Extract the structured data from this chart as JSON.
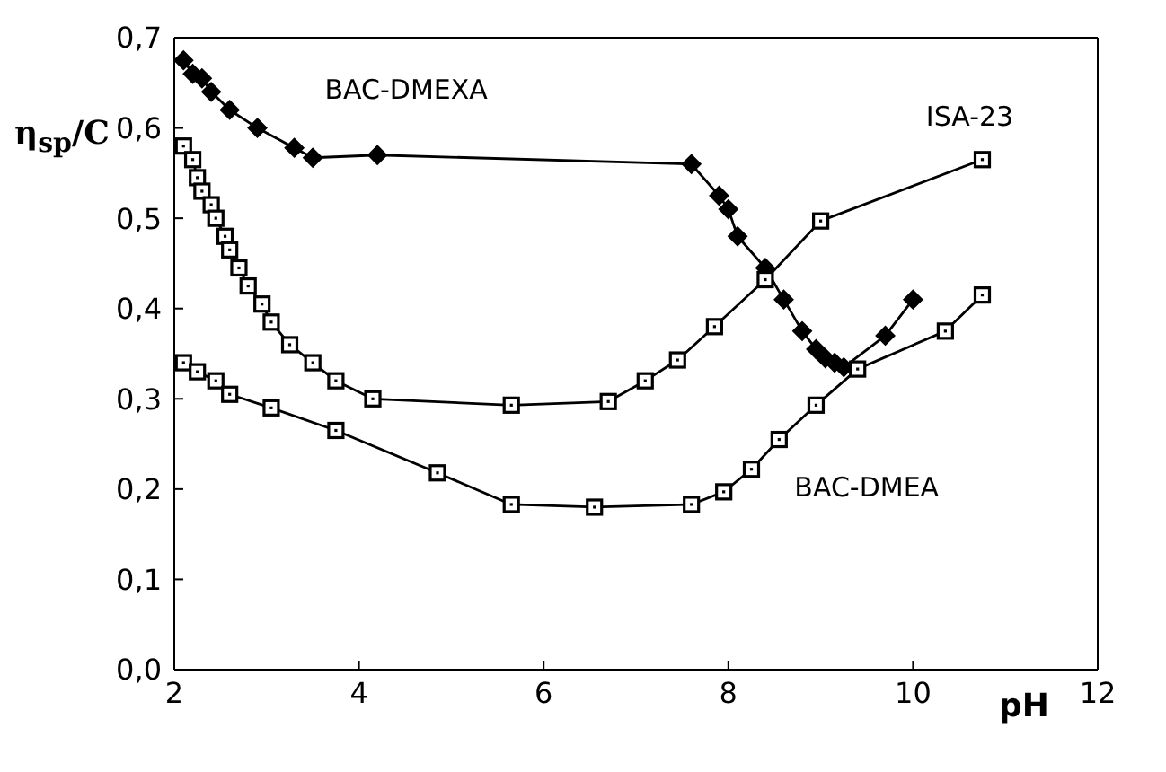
{
  "chart_data": {
    "type": "line",
    "xlabel": "pH",
    "ylabel": "η$_{sp}$/C",
    "xlim": [
      2,
      12
    ],
    "xticks": [
      2,
      4,
      6,
      8,
      10,
      12
    ],
    "ylim": [
      0,
      0.7
    ],
    "yticks": [
      {
        "value": 0,
        "label": "0,0"
      },
      {
        "value": 0.1,
        "label": "0,1"
      },
      {
        "value": 0.2,
        "label": "0,2"
      },
      {
        "value": 0.3,
        "label": "0,3"
      },
      {
        "value": 0.4,
        "label": "0,4"
      },
      {
        "value": 0.5,
        "label": "0,5"
      },
      {
        "value": 0.6,
        "label": "0,6"
      },
      {
        "value": 0.7,
        "label": "0,7"
      }
    ],
    "legend": false,
    "line_style": "solid",
    "series": [
      {
        "name": "BAC-DMEXA",
        "color": "#000000",
        "marker": "diamond",
        "x": [
          2.1,
          2.2,
          2.3,
          2.4,
          2.6,
          2.9,
          3.3,
          3.5,
          4.2,
          7.6,
          7.9,
          8.0,
          8.1,
          8.4,
          8.6,
          8.8,
          8.95,
          9.05,
          9.15,
          9.25,
          9.7,
          10.0
        ],
        "values": [
          0.675,
          0.66,
          0.655,
          0.64,
          0.62,
          0.6,
          0.578,
          0.567,
          0.57,
          0.56,
          0.525,
          0.51,
          0.48,
          0.445,
          0.41,
          0.375,
          0.355,
          0.345,
          0.34,
          0.335,
          0.37,
          0.41
        ]
      },
      {
        "name": "ISA-23",
        "color": "#000000",
        "marker": "square",
        "x": [
          2.1,
          2.2,
          2.25,
          2.3,
          2.4,
          2.45,
          2.55,
          2.6,
          2.7,
          2.8,
          2.95,
          3.05,
          3.25,
          3.5,
          3.75,
          4.15,
          5.65,
          6.7,
          7.1,
          7.45,
          7.85,
          8.4,
          9.0,
          10.75
        ],
        "values": [
          0.58,
          0.565,
          0.545,
          0.53,
          0.515,
          0.5,
          0.48,
          0.465,
          0.445,
          0.425,
          0.405,
          0.385,
          0.36,
          0.34,
          0.32,
          0.3,
          0.293,
          0.297,
          0.32,
          0.343,
          0.38,
          0.432,
          0.497,
          0.565
        ]
      },
      {
        "name": "BAC-DMEA",
        "color": "#000000",
        "marker": "square",
        "x": [
          2.1,
          2.25,
          2.45,
          2.6,
          3.05,
          3.75,
          4.85,
          5.65,
          6.55,
          7.6,
          7.95,
          8.25,
          8.55,
          8.95,
          9.4,
          10.35,
          10.75
        ],
        "values": [
          0.34,
          0.33,
          0.32,
          0.305,
          0.29,
          0.265,
          0.218,
          0.183,
          0.18,
          0.183,
          0.197,
          0.222,
          0.255,
          0.293,
          0.333,
          0.375,
          0.415
        ]
      }
    ]
  }
}
